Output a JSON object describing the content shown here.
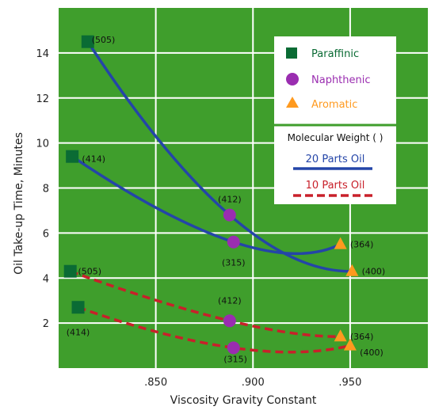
{
  "chart_data": {
    "type": "line",
    "xlabel": "Viscosity Gravity Constant",
    "ylabel": "Oil Take-up Time, Minutes",
    "xlim": [
      0.8,
      0.99
    ],
    "ylim": [
      0,
      16
    ],
    "x_ticks": [
      ".850",
      ".900",
      ".950"
    ],
    "x_tick_values": [
      0.85,
      0.9,
      0.95
    ],
    "y_ticks": [
      "2",
      "4",
      "6",
      "8",
      "10",
      "12",
      "14"
    ],
    "y_tick_values": [
      2,
      4,
      6,
      8,
      10,
      12,
      14
    ],
    "grid": true,
    "background": "#3f9e2c",
    "legend": {
      "placement": "top-right",
      "markers": [
        {
          "label": "Paraffinic",
          "shape": "square",
          "color": "#0a6b34",
          "text_color": "#0a6b34"
        },
        {
          "label": "Naphthenic",
          "shape": "circle",
          "color": "#9a2db0",
          "text_color": "#9a2db0"
        },
        {
          "label": "Aromatic",
          "shape": "triangle",
          "color": "#ff9a1f",
          "text_color": "#ff9a1f"
        }
      ],
      "mw_title": "Molecular Weight (   )",
      "lines": [
        {
          "label": "20 Parts Oil",
          "color": "#2445a8",
          "style": "solid"
        },
        {
          "label": "10 Parts Oil",
          "color": "#c8202a",
          "style": "dashed"
        }
      ]
    },
    "series": [
      {
        "name": "20 Parts Oil",
        "molecular_weight": "505",
        "color": "#2445a8",
        "style": "solid",
        "points": [
          {
            "x": 0.815,
            "y": 14.5,
            "type": "Paraffinic"
          },
          {
            "x": 0.888,
            "y": 6.8,
            "type": "Naphthenic"
          },
          {
            "x": 0.951,
            "y": 4.3,
            "type": "Aromatic"
          }
        ]
      },
      {
        "name": "20 Parts Oil",
        "molecular_weight": "414",
        "color": "#2445a8",
        "style": "solid",
        "points": [
          {
            "x": 0.807,
            "y": 9.4,
            "type": "Paraffinic"
          },
          {
            "x": 0.89,
            "y": 5.6,
            "type": "Naphthenic"
          },
          {
            "x": 0.945,
            "y": 5.5,
            "type": "Aromatic"
          }
        ]
      },
      {
        "name": "10 Parts Oil",
        "molecular_weight": "505",
        "color": "#c8202a",
        "style": "dashed",
        "points": [
          {
            "x": 0.806,
            "y": 4.3,
            "type": "Paraffinic"
          },
          {
            "x": 0.888,
            "y": 2.1,
            "type": "Naphthenic"
          },
          {
            "x": 0.945,
            "y": 1.4,
            "type": "Aromatic"
          }
        ]
      },
      {
        "name": "10 Parts Oil",
        "molecular_weight": "414",
        "color": "#c8202a",
        "style": "dashed",
        "points": [
          {
            "x": 0.81,
            "y": 2.7,
            "type": "Paraffinic"
          },
          {
            "x": 0.89,
            "y": 0.9,
            "type": "Naphthenic"
          },
          {
            "x": 0.95,
            "y": 1.0,
            "type": "Aromatic"
          }
        ]
      }
    ],
    "annotations": [
      {
        "text": "(505)",
        "x": 0.817,
        "y": 14.6,
        "anchor": "start"
      },
      {
        "text": "(414)",
        "x": 0.812,
        "y": 9.3,
        "anchor": "start"
      },
      {
        "text": "(412)",
        "x": 0.888,
        "y": 7.5,
        "anchor": "middle"
      },
      {
        "text": "(315)",
        "x": 0.89,
        "y": 4.7,
        "anchor": "middle"
      },
      {
        "text": "(364)",
        "x": 0.95,
        "y": 5.5,
        "anchor": "start"
      },
      {
        "text": "(400)",
        "x": 0.956,
        "y": 4.3,
        "anchor": "start"
      },
      {
        "text": "(505)",
        "x": 0.81,
        "y": 4.3,
        "anchor": "start"
      },
      {
        "text": "(412)",
        "x": 0.888,
        "y": 3.0,
        "anchor": "middle"
      },
      {
        "text": "(414)",
        "x": 0.81,
        "y": 1.6,
        "anchor": "middle"
      },
      {
        "text": "(315)",
        "x": 0.891,
        "y": 0.4,
        "anchor": "middle"
      },
      {
        "text": "(364)",
        "x": 0.95,
        "y": 1.4,
        "anchor": "start"
      },
      {
        "text": "(400)",
        "x": 0.955,
        "y": 0.7,
        "anchor": "start"
      }
    ]
  }
}
